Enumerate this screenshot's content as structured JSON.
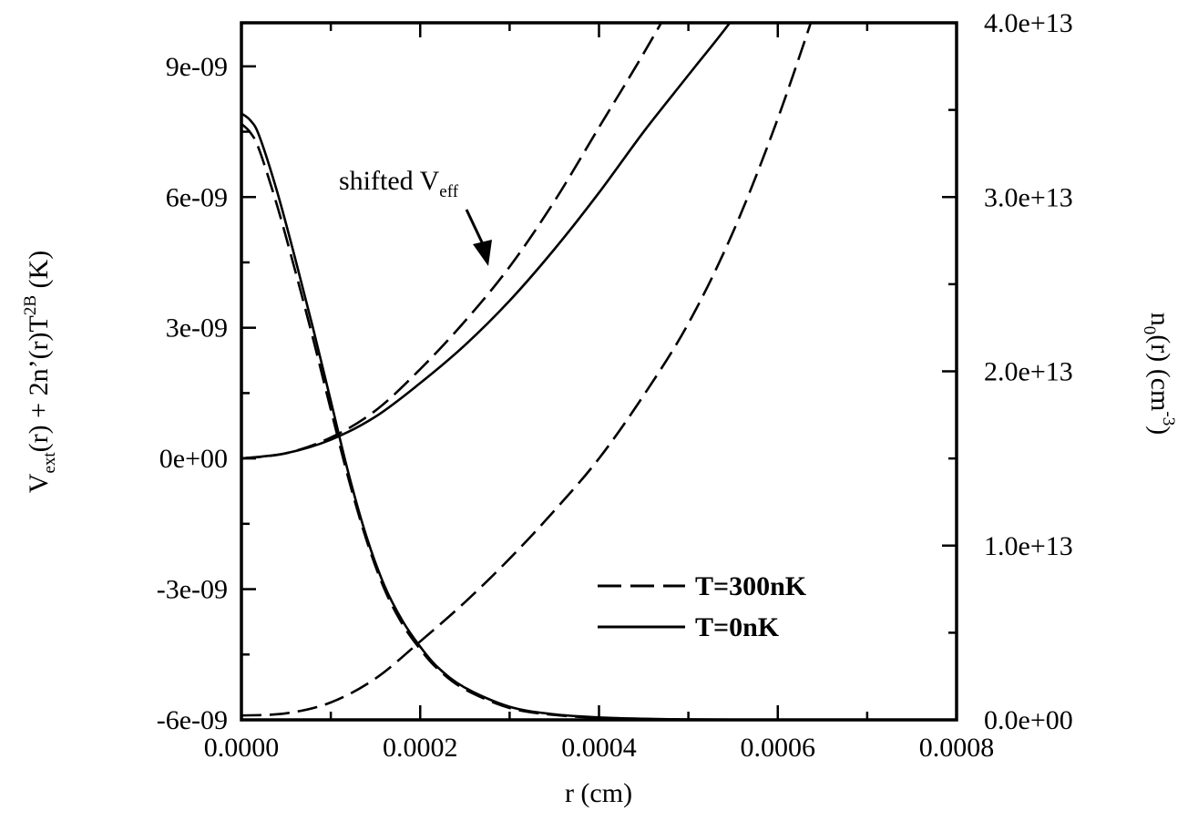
{
  "chart_data": {
    "type": "line",
    "xlabel": "r (cm)",
    "ylabel_left": {
      "main": "V",
      "sub1": "ext",
      "mid": "(r) + 2n’(r)T",
      "sup": "2B",
      "end": " (K)"
    },
    "ylabel_right": {
      "main": "n",
      "sub": "0",
      "mid": "(r) (cm",
      "sup": "-3",
      "end": ")"
    },
    "xlim": [
      0,
      0.0008
    ],
    "ylim_left": [
      -6e-09,
      1e-08
    ],
    "ylim_right": [
      0,
      40000000000000.0
    ],
    "x_ticks": [
      "0.0000",
      "0.0002",
      "0.0004",
      "0.0006",
      "0.0008"
    ],
    "x_tick_values": [
      0,
      0.0002,
      0.0004,
      0.0006,
      0.0008
    ],
    "y_left_ticks": [
      "-6e-09",
      "-3e-09",
      "0e+00",
      "3e-09",
      "6e-09",
      "9e-09"
    ],
    "y_left_tick_values": [
      -6e-09,
      -3e-09,
      0,
      3e-09,
      6e-09,
      9e-09
    ],
    "y_right_ticks": [
      "0.0e+00",
      "1.0e+13",
      "2.0e+13",
      "3.0e+13",
      "4.0e+13"
    ],
    "y_right_tick_values": [
      0,
      10000000000000.0,
      20000000000000.0,
      30000000000000.0,
      40000000000000.0
    ],
    "legend": [
      {
        "label": "T=300nK",
        "style": "dashed"
      },
      {
        "label": "T=0nK",
        "style": "solid"
      }
    ],
    "legend_position": "lower-right",
    "annotation": {
      "text": "shifted V",
      "sub": "eff",
      "target_x": 0.00027,
      "target_y": 3.3e-09
    },
    "series": [
      {
        "style": "solid",
        "axis": "left",
        "x": [
          0,
          5e-05,
          0.0001,
          0.00015,
          0.0002,
          0.00025,
          0.0003,
          0.00035,
          0.0004,
          0.00045,
          0.0005,
          0.00055,
          0.0006
        ],
        "y": [
          0,
          1.2e-10,
          4.3e-10,
          9.6e-10,
          1.73e-09,
          2.6e-09,
          3.62e-09,
          4.8e-09,
          6.1e-09,
          7.5e-09,
          8.8e-09,
          1.01e-08,
          1.16e-08
        ]
      },
      {
        "style": "dashed",
        "axis": "left",
        "x": [
          0,
          5e-05,
          0.0001,
          0.00015,
          0.0002,
          0.00025,
          0.0003,
          0.00035,
          0.0004,
          0.00045,
          0.0005
        ],
        "y": [
          0,
          1.2e-10,
          4.8e-10,
          1.1e-09,
          2.05e-09,
          3.15e-09,
          4.4e-09,
          5.9e-09,
          7.6e-09,
          9.3e-09,
          1.11e-08
        ]
      },
      {
        "style": "dashed",
        "axis": "left",
        "x": [
          0,
          5e-05,
          0.0001,
          0.00015,
          0.0002,
          0.00025,
          0.0003,
          0.00035,
          0.0004,
          0.00045,
          0.0005,
          0.00055,
          0.0006,
          0.00065
        ],
        "y": [
          -5.9e-09,
          -5.85e-09,
          -5.6e-09,
          -5.05e-09,
          -4.2e-09,
          -3.3e-09,
          -2.3e-09,
          -1.2e-09,
          0,
          1.45e-09,
          3.1e-09,
          5.2e-09,
          7.8e-09,
          1.08e-08
        ]
      },
      {
        "style": "solid",
        "axis": "right",
        "x": [
          0,
          1e-05,
          2e-05,
          4e-05,
          6e-05,
          8e-05,
          0.0001,
          0.00012,
          0.00014,
          0.00016,
          0.00018,
          0.0002,
          0.00022,
          0.00025,
          0.0003,
          0.00035,
          0.0004,
          0.00045,
          0.0005,
          0.00055,
          0.0006,
          0.0008
        ],
        "y": [
          34800000000000.0,
          34400000000000.0,
          33500000000000.0,
          30300000000000.0,
          26500000000000.0,
          22500000000000.0,
          18300000000000.0,
          14100000000000.0,
          10500000000000.0,
          7700000000000.0,
          5700000000000.0,
          4200000000000.0,
          3000000000000.0,
          1850000000000.0,
          750000000000.0,
          320000000000.0,
          140000000000.0,
          60000000000.0,
          25000000000.0,
          10000000000.0,
          3000000000.0,
          0
        ]
      },
      {
        "style": "dashed",
        "axis": "right",
        "x": [
          0,
          1e-05,
          2e-05,
          4e-05,
          6e-05,
          8e-05,
          0.0001,
          0.00012,
          0.00014,
          0.00016,
          0.00018,
          0.0002,
          0.00022,
          0.00025,
          0.0003,
          0.00035,
          0.0004,
          0.00045,
          0.0005,
          0.00055,
          0.0006,
          0.0008
        ],
        "y": [
          34200000000000.0,
          33700000000000.0,
          32700000000000.0,
          29500000000000.0,
          25800000000000.0,
          21900000000000.0,
          17800000000000.0,
          13800000000000.0,
          10300000000000.0,
          7500000000000.0,
          5500000000000.0,
          4050000000000.0,
          2900000000000.0,
          1750000000000.0,
          680000000000.0,
          280000000000.0,
          120000000000.0,
          50000000000.0,
          20000000000.0,
          8000000000.0,
          2000000000.0,
          0
        ]
      }
    ]
  }
}
